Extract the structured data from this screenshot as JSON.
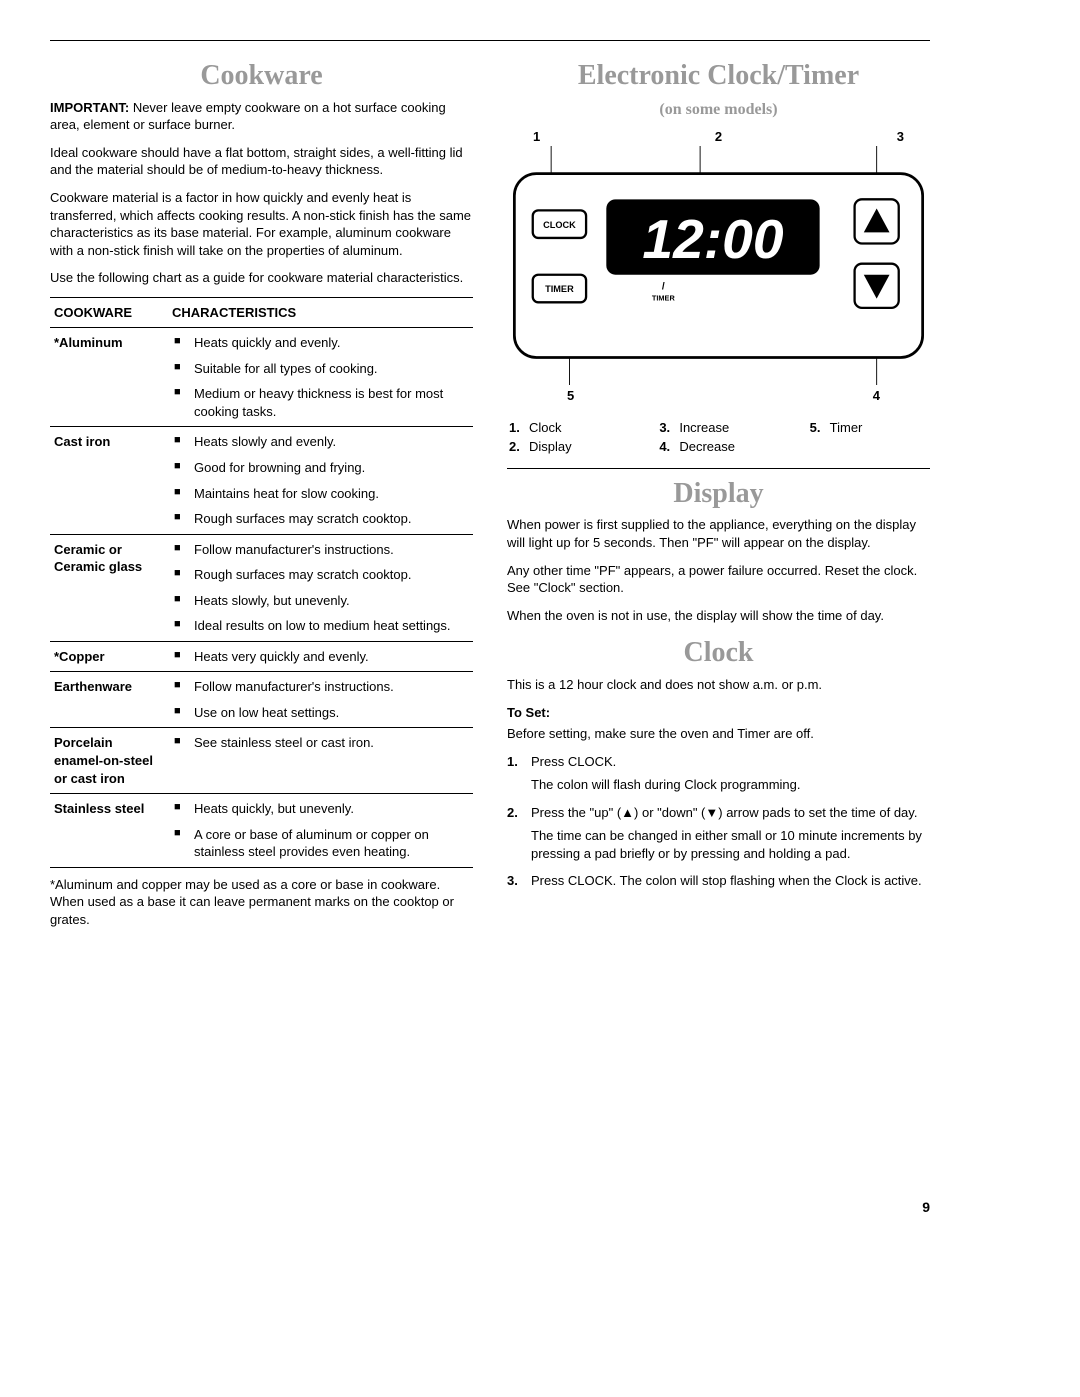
{
  "left": {
    "title": "Cookware",
    "important_label": "IMPORTANT:",
    "important_text": " Never leave empty cookware on a hot surface cooking area, element or surface burner.",
    "p2": "Ideal cookware should have a flat bottom, straight sides, a well-fitting lid and the material should be of medium-to-heavy thickness.",
    "p3": "Cookware material is a factor in how quickly and evenly heat is transferred, which affects cooking results. A non-stick finish has the same characteristics as its base material. For example, aluminum cookware with a non-stick finish will take on the properties of aluminum.",
    "p4": "Use the following chart as a guide for cookware material characteristics.",
    "col1": "COOKWARE",
    "col2": "CHARACTERISTICS",
    "rows": [
      {
        "mat": "*Aluminum",
        "items": [
          "Heats quickly and evenly.",
          "Suitable for all types of cooking.",
          "Medium or heavy thickness is best for most cooking tasks."
        ]
      },
      {
        "mat": "Cast iron",
        "items": [
          "Heats slowly and evenly.",
          "Good for browning and frying.",
          "Maintains heat for slow cooking.",
          "Rough surfaces may scratch cooktop."
        ]
      },
      {
        "mat": "Ceramic or Ceramic glass",
        "items": [
          "Follow manufacturer's instructions.",
          "Rough surfaces may scratch cooktop.",
          "Heats slowly, but unevenly.",
          "Ideal results on low to medium heat settings."
        ]
      },
      {
        "mat": "*Copper",
        "items": [
          "Heats very quickly and evenly."
        ]
      },
      {
        "mat": "Earthenware",
        "items": [
          "Follow manufacturer's instructions.",
          "Use on low heat settings."
        ]
      },
      {
        "mat": "Porcelain enamel-on-steel or cast iron",
        "items": [
          "See stainless steel or cast iron."
        ]
      },
      {
        "mat": "Stainless steel",
        "items": [
          "Heats quickly, but unevenly.",
          "A core or base of aluminum or copper on stainless steel provides even heating."
        ]
      }
    ],
    "footnote": "*Aluminum and copper may be used as a core or base in cookware. When used as a base it can leave permanent marks on the cooktop or grates."
  },
  "right": {
    "title1": "Electronic Clock/Timer",
    "subtitle": "(on some models)",
    "callouts_top": [
      "1",
      "2",
      "3"
    ],
    "callouts_bot": [
      "5",
      "4"
    ],
    "panel": {
      "clock_btn": "CLOCK",
      "timer_btn": "TIMER",
      "display_time": "12:00",
      "timer_label": "TIMER",
      "slash": "/"
    },
    "legend": [
      {
        "n": "1.",
        "t": "Clock"
      },
      {
        "n": "2.",
        "t": "Display"
      },
      {
        "n": "3.",
        "t": "Increase"
      },
      {
        "n": "4.",
        "t": "Decrease"
      },
      {
        "n": "5.",
        "t": "Timer"
      }
    ],
    "display_title": "Display",
    "disp_p1": "When power is first supplied to the appliance, everything on the display will light up for 5 seconds. Then \"PF\" will appear on the display.",
    "disp_p2": "Any other time \"PF\" appears, a power failure occurred. Reset the clock. See \"Clock\" section.",
    "disp_p3": "When the oven is not in use, the display will show the time of day.",
    "clock_title": "Clock",
    "clock_p1": "This is a 12 hour clock and does not show a.m. or p.m.",
    "toset": "To Set:",
    "toset_intro": "Before setting, make sure the oven and Timer are off.",
    "steps": [
      {
        "n": "1.",
        "lines": [
          "Press CLOCK.",
          "The colon will flash during Clock programming."
        ]
      },
      {
        "n": "2.",
        "lines": [
          "Press the \"up\" (▲) or \"down\" (▼) arrow pads to set the time of day.",
          "The time can be changed in either small or 10 minute increments by pressing a pad briefly or by pressing and holding a pad."
        ]
      },
      {
        "n": "3.",
        "lines": [
          "Press CLOCK. The colon will stop flashing when the Clock is active."
        ]
      }
    ]
  },
  "page_number": "9"
}
